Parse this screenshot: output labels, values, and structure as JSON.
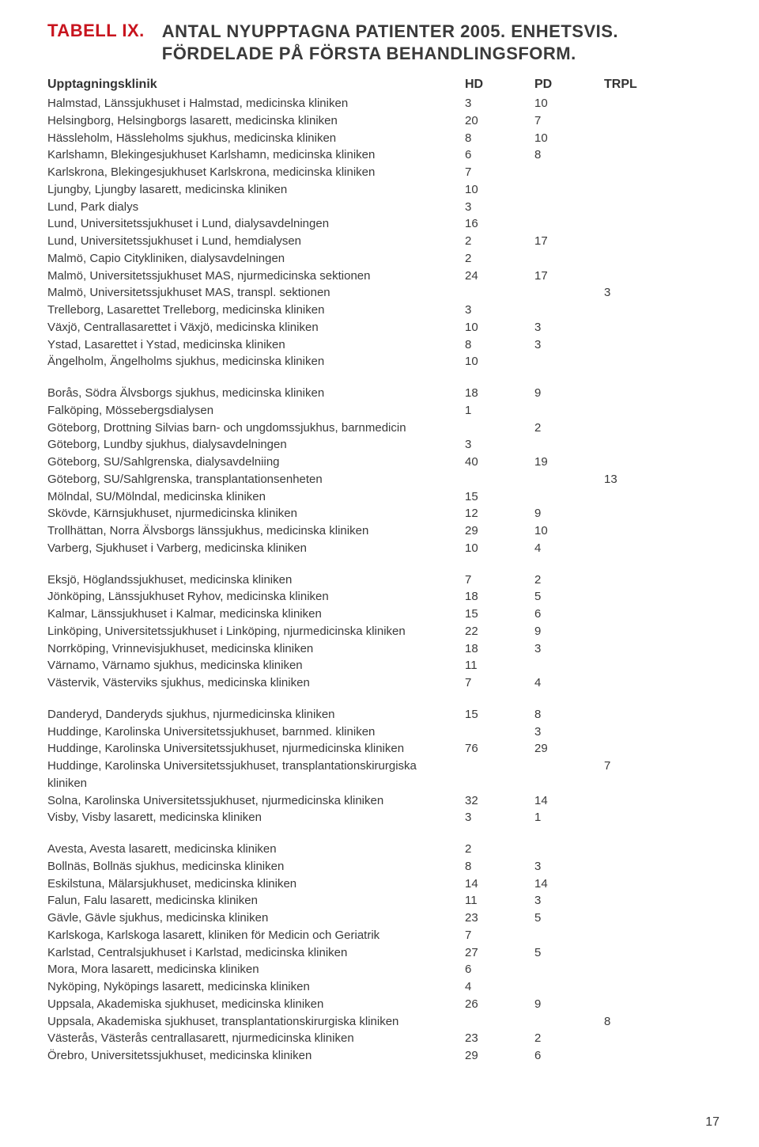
{
  "page_number": "17",
  "heading": {
    "label": "TABELL IX.",
    "title_line1": "ANTAL NYUPPTAGNA PATIENTER 2005. ENHETSVIS.",
    "title_line2": "FÖRDELADE PÅ FÖRSTA BEHANDLINGSFORM."
  },
  "columns": {
    "c0": "Upptagningsklinik",
    "c1": "HD",
    "c2": "PD",
    "c3": "TRPL"
  },
  "blocks": [
    [
      {
        "name": "Halmstad, Länssjukhuset i Halmstad, medicinska kliniken",
        "hd": "3",
        "pd": "10",
        "trpl": ""
      },
      {
        "name": "Helsingborg, Helsingborgs lasarett, medicinska kliniken",
        "hd": "20",
        "pd": "7",
        "trpl": ""
      },
      {
        "name": "Hässleholm, Hässleholms sjukhus, medicinska kliniken",
        "hd": "8",
        "pd": "10",
        "trpl": ""
      },
      {
        "name": "Karlshamn, Blekingesjukhuset Karlshamn, medicinska kliniken",
        "hd": "6",
        "pd": "8",
        "trpl": ""
      },
      {
        "name": "Karlskrona, Blekingesjukhuset Karlskrona, medicinska kliniken",
        "hd": "7",
        "pd": "",
        "trpl": ""
      },
      {
        "name": "Ljungby, Ljungby lasarett, medicinska kliniken",
        "hd": "10",
        "pd": "",
        "trpl": ""
      },
      {
        "name": "Lund, Park dialys",
        "hd": "3",
        "pd": "",
        "trpl": ""
      },
      {
        "name": "Lund, Universitetssjukhuset i Lund, dialysavdelningen",
        "hd": "16",
        "pd": "",
        "trpl": ""
      },
      {
        "name": "Lund, Universitetssjukhuset i Lund, hemdialysen",
        "hd": "2",
        "pd": "17",
        "trpl": ""
      },
      {
        "name": "Malmö, Capio Citykliniken, dialysavdelningen",
        "hd": "2",
        "pd": "",
        "trpl": ""
      },
      {
        "name": "Malmö, Universitetssjukhuset MAS, njurmedicinska sektionen",
        "hd": "24",
        "pd": "17",
        "trpl": ""
      },
      {
        "name": "Malmö, Universitetssjukhuset MAS, transpl. sektionen",
        "hd": "",
        "pd": "",
        "trpl": "3"
      },
      {
        "name": "Trelleborg, Lasarettet Trelleborg, medicinska kliniken",
        "hd": "3",
        "pd": "",
        "trpl": ""
      },
      {
        "name": "Växjö, Centrallasarettet i Växjö, medicinska kliniken",
        "hd": "10",
        "pd": "3",
        "trpl": ""
      },
      {
        "name": "Ystad, Lasarettet i Ystad, medicinska kliniken",
        "hd": "8",
        "pd": "3",
        "trpl": ""
      },
      {
        "name": "Ängelholm, Ängelholms sjukhus, medicinska kliniken",
        "hd": "10",
        "pd": "",
        "trpl": ""
      }
    ],
    [
      {
        "name": "Borås, Södra Älvsborgs sjukhus, medicinska kliniken",
        "hd": "18",
        "pd": "9",
        "trpl": ""
      },
      {
        "name": "Falköping, Mössebergsdialysen",
        "hd": "1",
        "pd": "",
        "trpl": ""
      },
      {
        "name": "Göteborg, Drottning Silvias barn- och ungdomssjukhus, barnmedicin",
        "hd": "",
        "pd": "2",
        "trpl": ""
      },
      {
        "name": "Göteborg, Lundby sjukhus, dialysavdelningen",
        "hd": "3",
        "pd": "",
        "trpl": ""
      },
      {
        "name": "Göteborg, SU/Sahlgrenska, dialysavdelniing",
        "hd": "40",
        "pd": "19",
        "trpl": ""
      },
      {
        "name": "Göteborg, SU/Sahlgrenska, transplantationsenheten",
        "hd": "",
        "pd": "",
        "trpl": "13"
      },
      {
        "name": "Mölndal, SU/Mölndal, medicinska kliniken",
        "hd": "15",
        "pd": "",
        "trpl": ""
      },
      {
        "name": "Skövde, Kärnsjukhuset, njurmedicinska kliniken",
        "hd": "12",
        "pd": "9",
        "trpl": ""
      },
      {
        "name": "Trollhättan, Norra Älvsborgs länssjukhus, medicinska kliniken",
        "hd": "29",
        "pd": "10",
        "trpl": ""
      },
      {
        "name": "Varberg, Sjukhuset i Varberg, medicinska kliniken",
        "hd": "10",
        "pd": "4",
        "trpl": ""
      }
    ],
    [
      {
        "name": "Eksjö, Höglandssjukhuset, medicinska kliniken",
        "hd": "7",
        "pd": "2",
        "trpl": ""
      },
      {
        "name": "Jönköping, Länssjukhuset Ryhov, medicinska kliniken",
        "hd": "18",
        "pd": "5",
        "trpl": ""
      },
      {
        "name": "Kalmar, Länssjukhuset i Kalmar, medicinska kliniken",
        "hd": "15",
        "pd": "6",
        "trpl": ""
      },
      {
        "name": "Linköping, Universitetssjukhuset i Linköping, njurmedicinska kliniken",
        "hd": "22",
        "pd": "9",
        "trpl": ""
      },
      {
        "name": "Norrköping, Vrinnevisjukhuset, medicinska kliniken",
        "hd": "18",
        "pd": "3",
        "trpl": ""
      },
      {
        "name": "Värnamo, Värnamo sjukhus, medicinska kliniken",
        "hd": "11",
        "pd": "",
        "trpl": ""
      },
      {
        "name": "Västervik, Västerviks sjukhus, medicinska kliniken",
        "hd": "7",
        "pd": "4",
        "trpl": ""
      }
    ],
    [
      {
        "name": "Danderyd, Danderyds sjukhus, njurmedicinska kliniken",
        "hd": "15",
        "pd": "8",
        "trpl": ""
      },
      {
        "name": "Huddinge, Karolinska Universitetssjukhuset, barnmed. kliniken",
        "hd": "",
        "pd": "3",
        "trpl": ""
      },
      {
        "name": "Huddinge, Karolinska Universitetssjukhuset, njurmedicinska kliniken",
        "hd": "76",
        "pd": "29",
        "trpl": ""
      },
      {
        "name": "Huddinge, Karolinska Universitetssjukhuset, transplantationskirurgiska kliniken",
        "hd": "",
        "pd": "",
        "trpl": "7"
      },
      {
        "name": "Solna, Karolinska Universitetssjukhuset, njurmedicinska kliniken",
        "hd": "32",
        "pd": "14",
        "trpl": ""
      },
      {
        "name": "Visby, Visby lasarett, medicinska kliniken",
        "hd": "3",
        "pd": "1",
        "trpl": ""
      }
    ],
    [
      {
        "name": "Avesta, Avesta lasarett, medicinska kliniken",
        "hd": "2",
        "pd": "",
        "trpl": ""
      },
      {
        "name": "Bollnäs, Bollnäs sjukhus, medicinska kliniken",
        "hd": "8",
        "pd": "3",
        "trpl": ""
      },
      {
        "name": "Eskilstuna, Mälarsjukhuset, medicinska kliniken",
        "hd": "14",
        "pd": "14",
        "trpl": ""
      },
      {
        "name": "Falun, Falu lasarett, medicinska kliniken",
        "hd": "11",
        "pd": "3",
        "trpl": ""
      },
      {
        "name": "Gävle, Gävle sjukhus, medicinska kliniken",
        "hd": "23",
        "pd": "5",
        "trpl": ""
      },
      {
        "name": "Karlskoga, Karlskoga lasarett, kliniken för Medicin och Geriatrik",
        "hd": "7",
        "pd": "",
        "trpl": ""
      },
      {
        "name": "Karlstad, Centralsjukhuset i Karlstad, medicinska kliniken",
        "hd": "27",
        "pd": "5",
        "trpl": ""
      },
      {
        "name": "Mora, Mora lasarett, medicinska kliniken",
        "hd": "6",
        "pd": "",
        "trpl": ""
      },
      {
        "name": "Nyköping, Nyköpings lasarett, medicinska kliniken",
        "hd": "4",
        "pd": "",
        "trpl": ""
      },
      {
        "name": "Uppsala, Akademiska sjukhuset, medicinska kliniken",
        "hd": "26",
        "pd": "9",
        "trpl": ""
      },
      {
        "name": "Uppsala, Akademiska sjukhuset, transplantationskirurgiska kliniken",
        "hd": "",
        "pd": "",
        "trpl": "8"
      },
      {
        "name": "Västerås, Västerås centrallasarett, njurmedicinska kliniken",
        "hd": "23",
        "pd": "2",
        "trpl": ""
      },
      {
        "name": "Örebro, Universitetssjukhuset, medicinska kliniken",
        "hd": "29",
        "pd": "6",
        "trpl": ""
      }
    ]
  ]
}
